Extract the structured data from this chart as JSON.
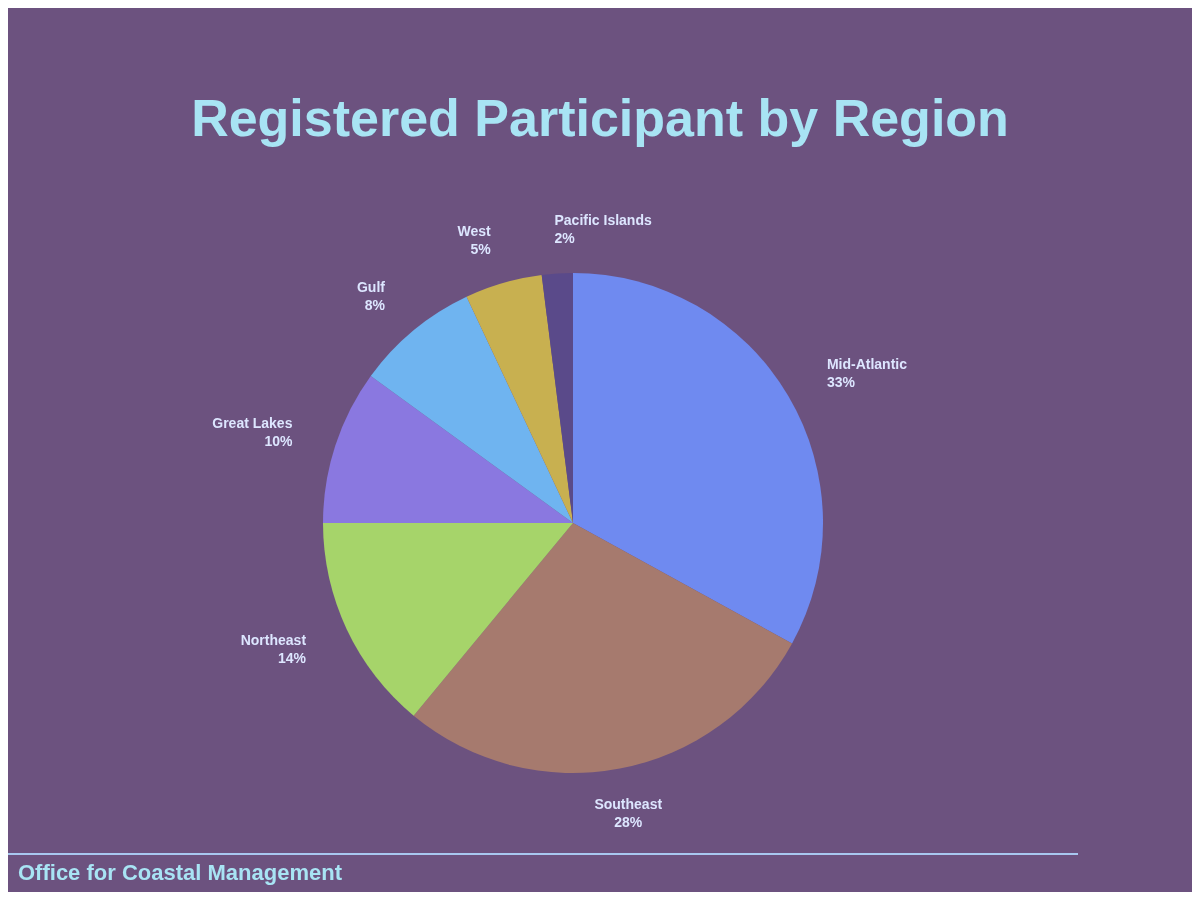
{
  "chart_data": {
    "type": "pie",
    "title": "Registered Participant by Region",
    "categories": [
      "Mid-Atlantic",
      "Southeast",
      "Northeast",
      "Great Lakes",
      "Gulf",
      "West",
      "Pacific Islands"
    ],
    "values": [
      33,
      28,
      14,
      10,
      8,
      5,
      2
    ],
    "value_labels": [
      "33%",
      "28%",
      "14%",
      "10%",
      "8%",
      "5%",
      "2%"
    ],
    "colors": [
      "#6f8af0",
      "#a67a6e",
      "#a6d46a",
      "#8a78e0",
      "#6fb4f0",
      "#c8b050",
      "#5a4a8a"
    ],
    "annotations": [
      "Office for Coastal Management"
    ]
  }
}
